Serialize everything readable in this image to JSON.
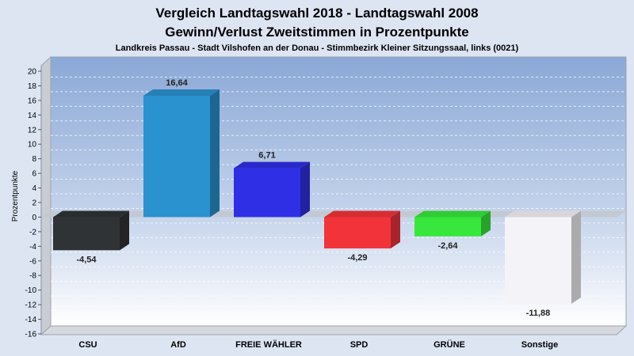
{
  "chart_data": {
    "type": "bar",
    "title": "Vergleich Landtagswahl 2018 - Landtagswahl 2008",
    "title_line2": "Gewinn/Verlust Zweitstimmen in Prozentpunkte",
    "subtitle": "Landkreis Passau - Stadt Vilshofen an der Donau - Stimmbezirk Kleiner Sitzungssaal, links (0021)",
    "xlabel": "",
    "ylabel": "Prozentpunkte",
    "ylim": [
      -16,
      20
    ],
    "yticks": [
      20,
      18,
      16,
      14,
      12,
      10,
      8,
      6,
      4,
      2,
      0,
      -2,
      -4,
      -6,
      -8,
      -10,
      -12,
      -14,
      -16
    ],
    "grid": true,
    "categories": [
      "CSU",
      "AfD",
      "FREIE WÄHLER",
      "SPD",
      "GRÜNE",
      "Sonstige"
    ],
    "values": [
      -4.54,
      16.64,
      6.71,
      -4.29,
      -2.64,
      -11.88
    ],
    "value_labels": [
      "-4,54",
      "16,64",
      "6,71",
      "-4,29",
      "-2,64",
      "-11,88"
    ],
    "colors": [
      "#303336",
      "#2a92cf",
      "#2f2fe6",
      "#f2333a",
      "#37e73c",
      "#f4f4f8"
    ]
  }
}
